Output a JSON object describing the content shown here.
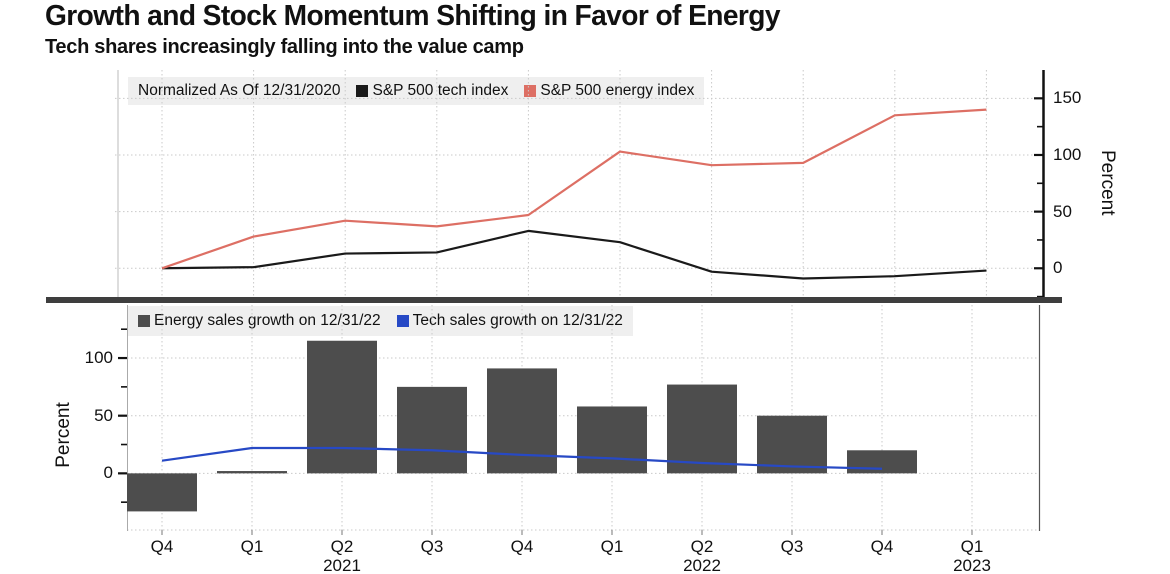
{
  "header": {
    "title": "Growth and Stock Momentum Shifting in Favor of Energy",
    "subtitle": "Tech shares increasingly falling into the value camp"
  },
  "x_axis": {
    "quarter_labels": [
      "Q4",
      "Q1",
      "Q2",
      "Q3",
      "Q4",
      "Q1",
      "Q2",
      "Q3",
      "Q4",
      "Q1"
    ],
    "year_labels": [
      {
        "text": "2021",
        "index": 2
      },
      {
        "text": "2022",
        "index": 6
      },
      {
        "text": "2023",
        "index": 9
      }
    ]
  },
  "colors": {
    "tech_index_line": "#1a1a1a",
    "energy_index_line": "#dd6f64",
    "energy_bars": "#4d4d4d",
    "tech_sales_line": "#2749c5",
    "legend_background": "#efefef",
    "gridline": "#c9c9c9",
    "separator": "#3e3e3e"
  },
  "chart_data": [
    {
      "type": "line",
      "title": "",
      "legend_note": "Normalized As Of 12/31/2020",
      "categories": [
        "Q4 2020",
        "Q1 2021",
        "Q2 2021",
        "Q3 2021",
        "Q4 2021",
        "Q1 2022",
        "Q2 2022",
        "Q3 2022",
        "Q4 2022",
        "Q1 2023"
      ],
      "series": [
        {
          "name": "S&P 500 tech index",
          "color": "#1a1a1a",
          "values": [
            0,
            1,
            13,
            14,
            33,
            23,
            -3,
            -9,
            -7,
            -2
          ]
        },
        {
          "name": "S&P 500 energy index",
          "color": "#dd6f64",
          "values": [
            0,
            28,
            42,
            37,
            47,
            103,
            91,
            93,
            135,
            140
          ]
        }
      ],
      "ylabel": "Percent",
      "yticks": [
        0,
        50,
        100,
        150
      ],
      "yticks_minor": [
        -25,
        25,
        75,
        125
      ],
      "ylim": [
        -28,
        175
      ],
      "grid": true,
      "legend_position": "top-left",
      "y_axis_side": "right"
    },
    {
      "type": "bar",
      "title": "",
      "categories": [
        "Q4 2020",
        "Q1 2021",
        "Q2 2021",
        "Q3 2021",
        "Q4 2021",
        "Q1 2022",
        "Q2 2022",
        "Q3 2022",
        "Q4 2022",
        "Q1 2023"
      ],
      "series": [
        {
          "name": "Energy sales growth on 12/31/22",
          "type": "bar",
          "color": "#4d4d4d",
          "values": [
            -33,
            2,
            115,
            75,
            91,
            58,
            77,
            50,
            20,
            null
          ]
        },
        {
          "name": "Tech sales growth on 12/31/22",
          "type": "line",
          "color": "#2749c5",
          "values": [
            11,
            22,
            22,
            20,
            16,
            13,
            9,
            6,
            4,
            null
          ]
        }
      ],
      "ylabel": "Percent",
      "yticks": [
        0,
        50,
        100
      ],
      "yticks_minor": [
        -25,
        25,
        75,
        125
      ],
      "ylim": [
        -50,
        146
      ],
      "grid": true,
      "legend_position": "top-left",
      "y_axis_side": "left"
    }
  ]
}
